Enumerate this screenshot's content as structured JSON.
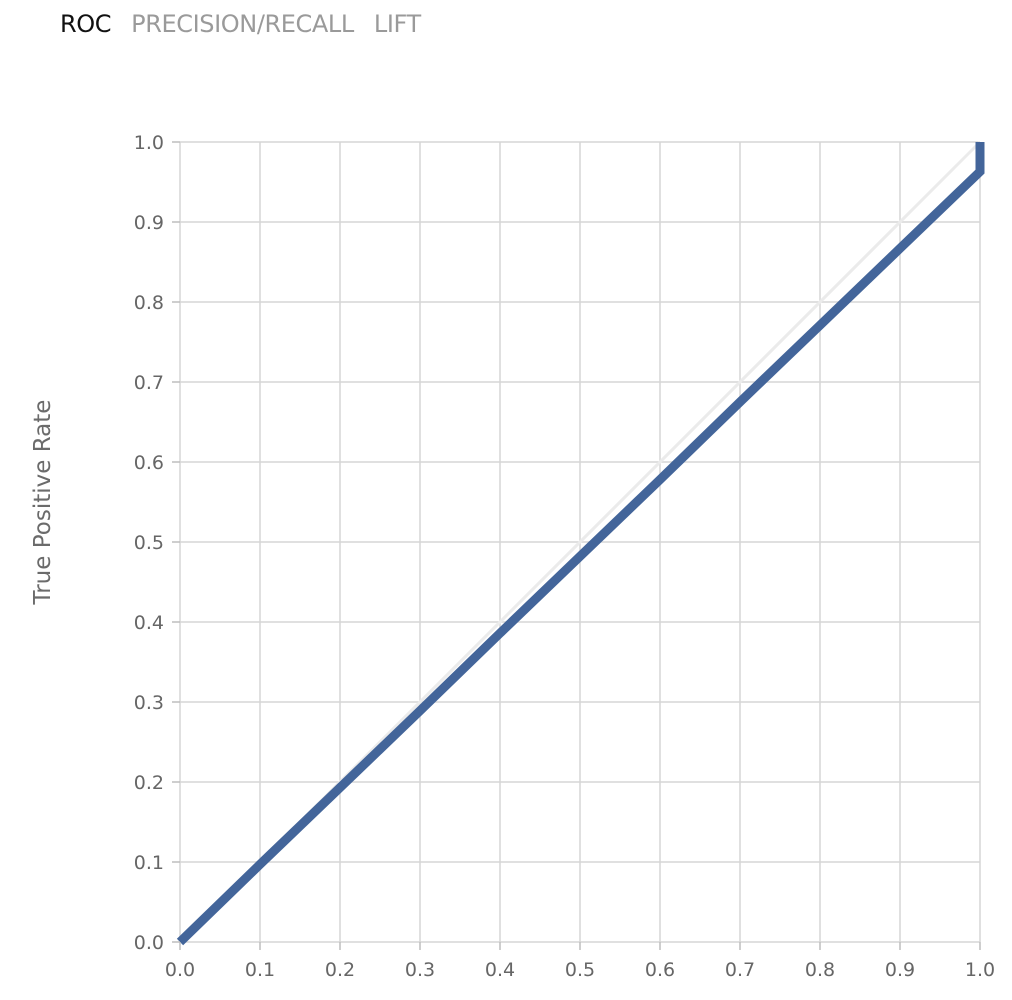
{
  "tabs": [
    {
      "label": "ROC",
      "active": true
    },
    {
      "label": "PRECISION/RECALL",
      "active": false
    },
    {
      "label": "LIFT",
      "active": false
    }
  ],
  "chart_data": {
    "type": "line",
    "title": "",
    "xlabel": "",
    "ylabel": "True Positive Rate",
    "xlim": [
      0.0,
      1.0
    ],
    "ylim": [
      0.0,
      1.0
    ],
    "x_ticks": [
      "0.0",
      "0.1",
      "0.2",
      "0.3",
      "0.4",
      "0.5",
      "0.6",
      "0.7",
      "0.8",
      "0.9",
      "1.0"
    ],
    "y_ticks": [
      "0.0",
      "0.1",
      "0.2",
      "0.3",
      "0.4",
      "0.5",
      "0.6",
      "0.7",
      "0.8",
      "0.9",
      "1.0"
    ],
    "grid": true,
    "series": [
      {
        "role": "roc",
        "color": "#43659a",
        "x": [
          0.0,
          0.1,
          0.2,
          0.3,
          0.4,
          0.5,
          0.6,
          0.7,
          0.8,
          0.9,
          1.0,
          1.0
        ],
        "y": [
          0.0,
          0.097,
          0.193,
          0.289,
          0.386,
          0.482,
          0.578,
          0.675,
          0.771,
          0.867,
          0.963,
          1.0
        ]
      },
      {
        "role": "baseline",
        "color": "#ebebeb",
        "x": [
          0.0,
          1.0
        ],
        "y": [
          0.0,
          1.0
        ]
      }
    ]
  }
}
